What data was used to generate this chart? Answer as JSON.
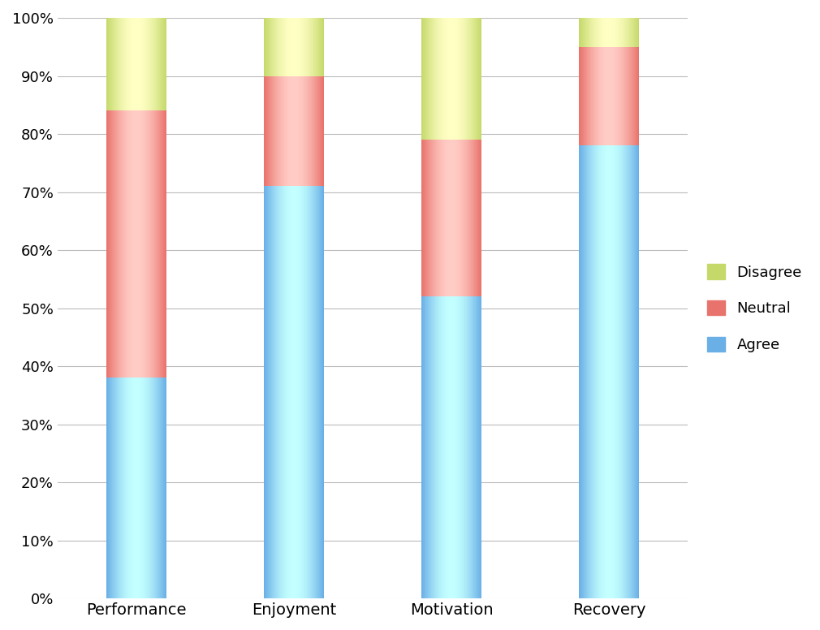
{
  "categories": [
    "Performance",
    "Enjoyment",
    "Motivation",
    "Recovery"
  ],
  "agree": [
    38,
    71,
    52,
    78
  ],
  "neutral": [
    46,
    19,
    27,
    17
  ],
  "disagree": [
    16,
    10,
    21,
    5
  ],
  "color_agree": "#6aafe6",
  "color_neutral": "#e8736c",
  "color_disagree": "#c5d96b",
  "ylim": [
    0,
    100
  ],
  "ytick_labels": [
    "0%",
    "10%",
    "20%",
    "30%",
    "40%",
    "50%",
    "60%",
    "70%",
    "80%",
    "90%",
    "100%"
  ],
  "ytick_values": [
    0,
    10,
    20,
    30,
    40,
    50,
    60,
    70,
    80,
    90,
    100
  ],
  "bar_width": 0.38,
  "background_color": "#ffffff",
  "grid_color": "#bbbbbb",
  "tick_fontsize": 13,
  "xlabel_fontsize": 14
}
